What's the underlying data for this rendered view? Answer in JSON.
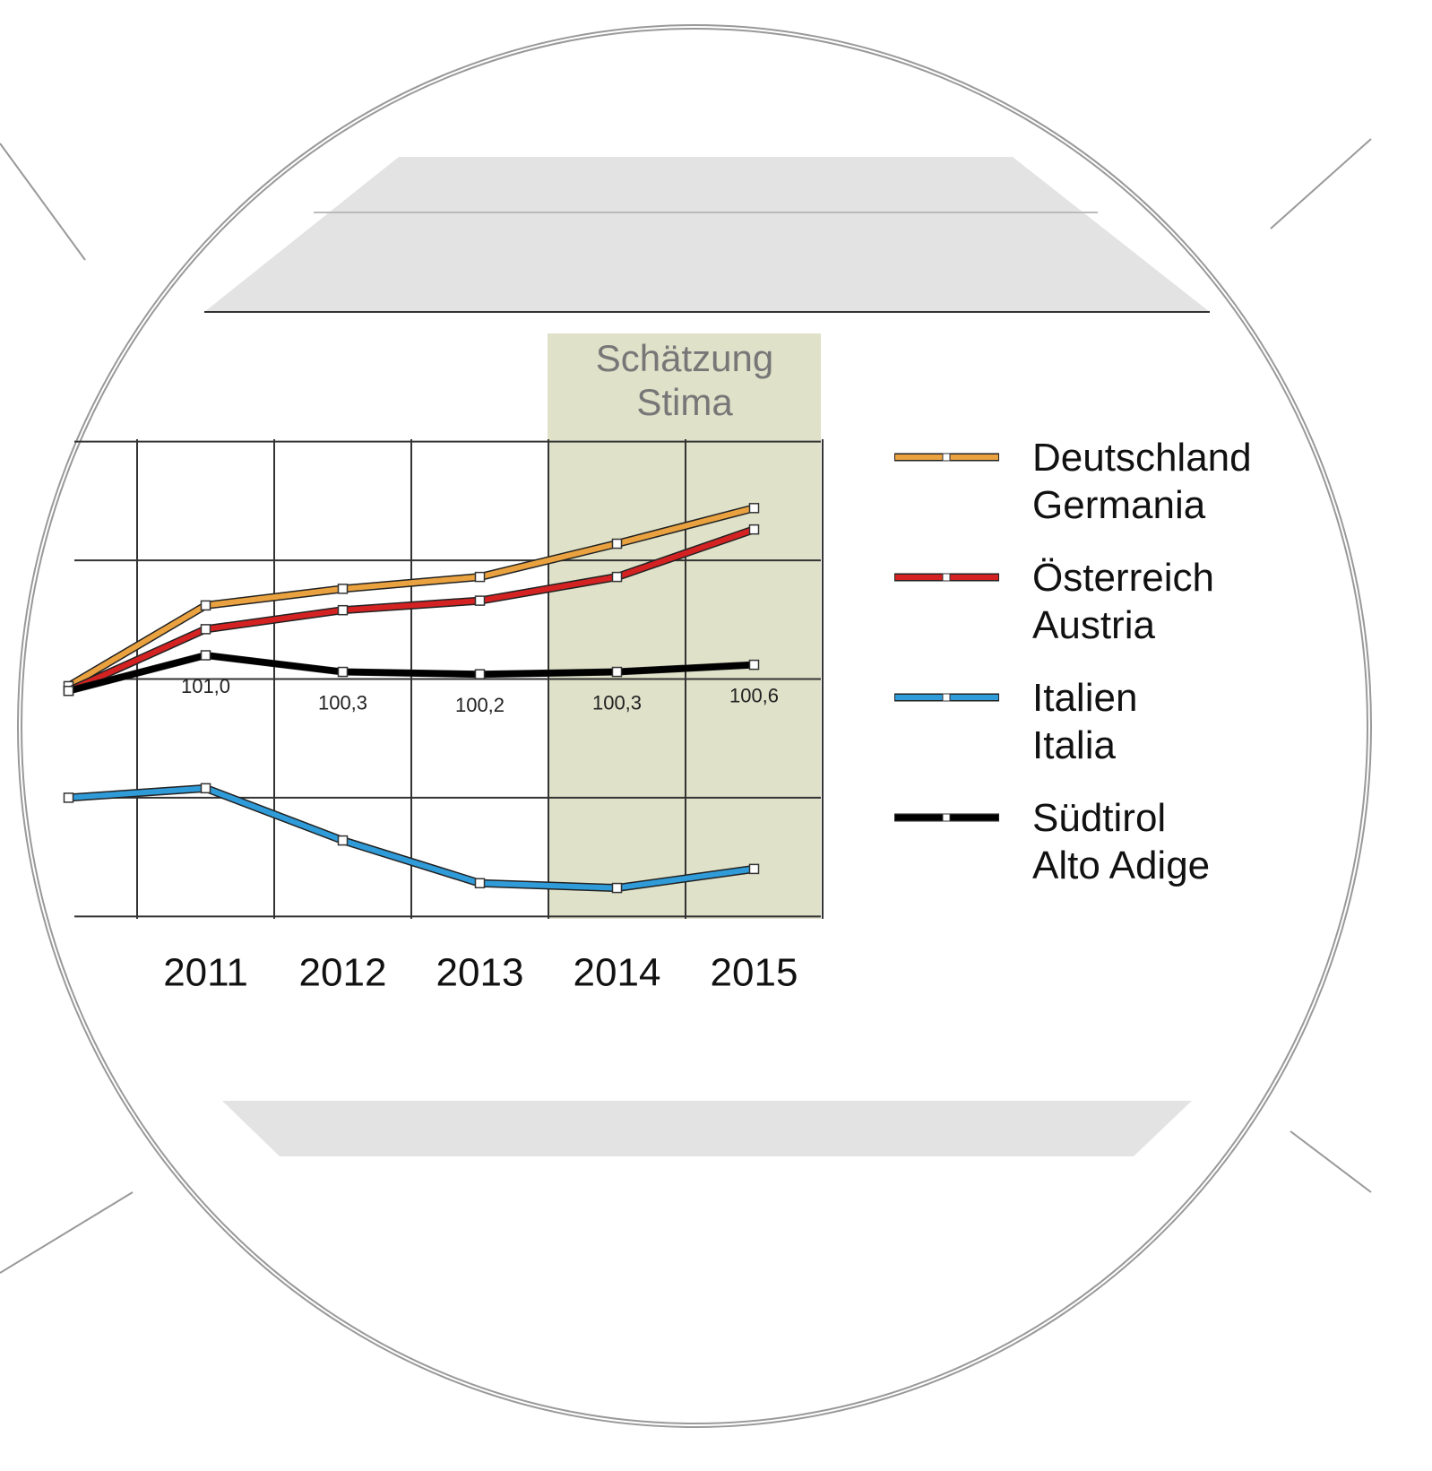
{
  "chart_data": {
    "type": "line",
    "categories": [
      null,
      "2011",
      "2012",
      "2013",
      "2014",
      "2015"
    ],
    "annotations": [
      "Schätzung",
      "Stima"
    ],
    "series": [
      {
        "name": "Deutschland\nGermania",
        "color": "#e9a23f",
        "values": [
          99.7,
          103.1,
          103.8,
          104.3,
          105.7,
          107.2
        ]
      },
      {
        "name": "Österreich\nAustria",
        "color": "#d42222",
        "values": [
          99.5,
          102.1,
          102.9,
          103.3,
          104.3,
          106.3
        ]
      },
      {
        "name": "Italien\nItalia",
        "color": "#2f9bd8",
        "values": [
          95.0,
          95.4,
          93.2,
          91.4,
          91.2,
          92.0
        ]
      },
      {
        "name": "Südtirol\nAlto Adige",
        "color": "#000000",
        "values": [
          99.5,
          101.0,
          100.3,
          100.2,
          100.3,
          100.6
        ],
        "value_labels": [
          null,
          "101,0",
          "100,3",
          "100,2",
          "100,3",
          "100,6"
        ]
      }
    ],
    "ylim": [
      89.9,
      110.1
    ],
    "yticks": [
      90,
      95,
      100,
      105,
      110
    ],
    "grid": true
  }
}
